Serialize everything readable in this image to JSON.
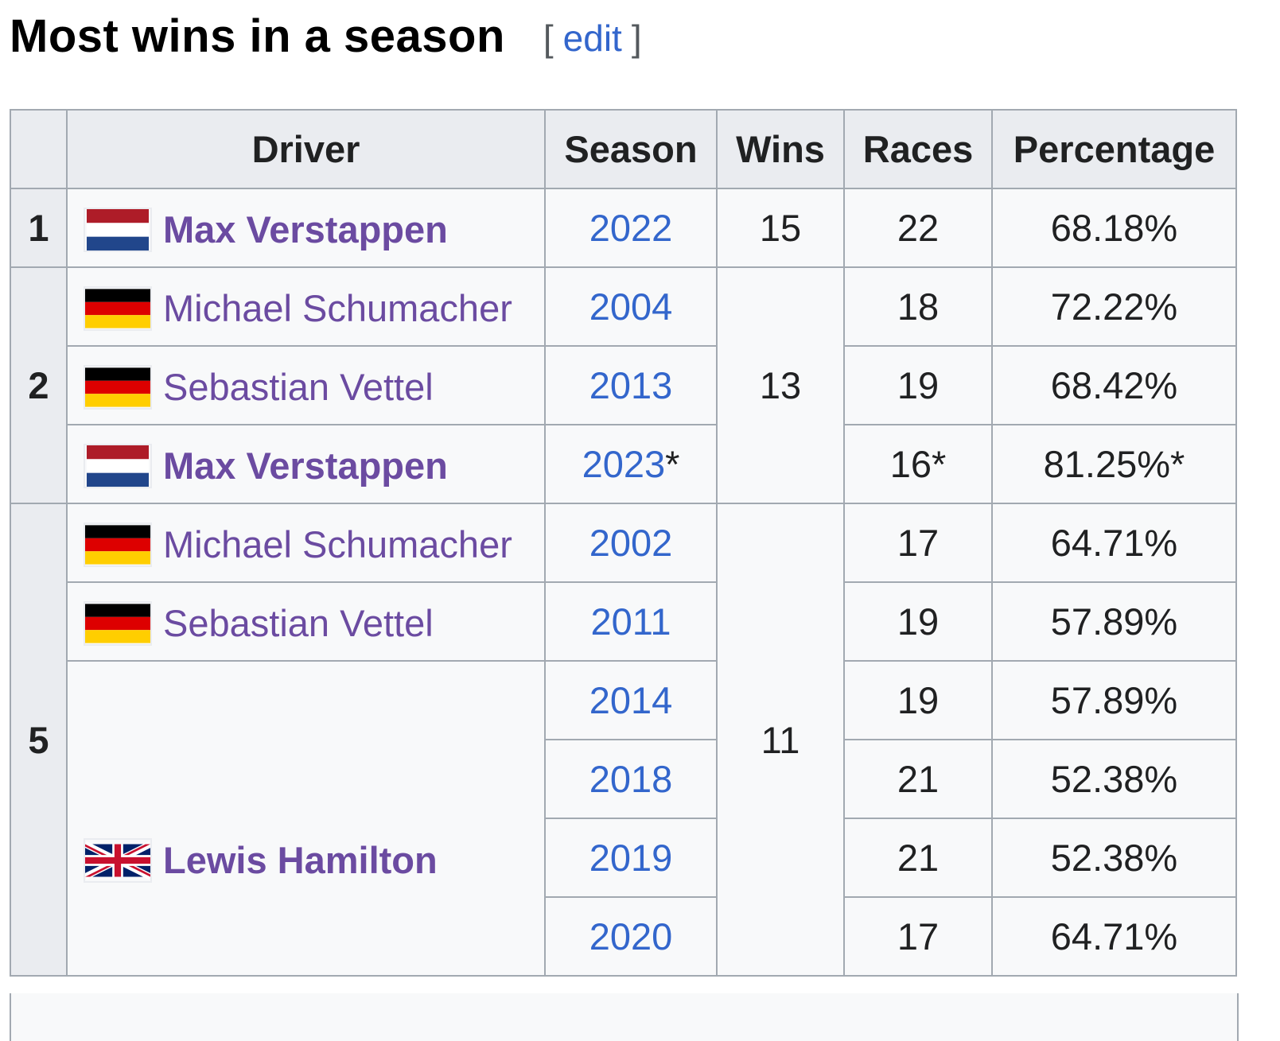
{
  "heading": {
    "title": "Most wins in a season",
    "edit_open": "[",
    "edit_label": "edit",
    "edit_close": "]"
  },
  "table": {
    "columns": [
      "Driver",
      "Season",
      "Wins",
      "Races",
      "Percentage"
    ],
    "groups": [
      {
        "rank": "1",
        "wins": "15",
        "entries": [
          {
            "driver": "Max Verstappen",
            "flag": "netherlands-flag-icon",
            "bold": true,
            "seasons": [
              {
                "season": "2022",
                "note": "",
                "races": "22",
                "percentage": "68.18%"
              }
            ]
          }
        ]
      },
      {
        "rank": "2",
        "wins": "13",
        "entries": [
          {
            "driver": "Michael Schumacher",
            "flag": "germany-flag-icon",
            "bold": false,
            "seasons": [
              {
                "season": "2004",
                "note": "",
                "races": "18",
                "percentage": "72.22%"
              }
            ]
          },
          {
            "driver": "Sebastian Vettel",
            "flag": "germany-flag-icon",
            "bold": false,
            "seasons": [
              {
                "season": "2013",
                "note": "",
                "races": "19",
                "percentage": "68.42%"
              }
            ]
          },
          {
            "driver": "Max Verstappen",
            "flag": "netherlands-flag-icon",
            "bold": true,
            "seasons": [
              {
                "season": "2023",
                "note": "*",
                "races": "16*",
                "percentage": "81.25%*"
              }
            ]
          }
        ]
      },
      {
        "rank": "5",
        "wins": "11",
        "entries": [
          {
            "driver": "Michael Schumacher",
            "flag": "germany-flag-icon",
            "bold": false,
            "seasons": [
              {
                "season": "2002",
                "note": "",
                "races": "17",
                "percentage": "64.71%"
              }
            ]
          },
          {
            "driver": "Sebastian Vettel",
            "flag": "germany-flag-icon",
            "bold": false,
            "seasons": [
              {
                "season": "2011",
                "note": "",
                "races": "19",
                "percentage": "57.89%"
              }
            ]
          },
          {
            "driver": "Lewis Hamilton",
            "flag": "united-kingdom-flag-icon",
            "bold": true,
            "seasons": [
              {
                "season": "2014",
                "note": "",
                "races": "19",
                "percentage": "57.89%"
              },
              {
                "season": "2018",
                "note": "",
                "races": "21",
                "percentage": "52.38%"
              },
              {
                "season": "2019",
                "note": "",
                "races": "21",
                "percentage": "52.38%"
              },
              {
                "season": "2020",
                "note": "",
                "races": "17",
                "percentage": "64.71%"
              }
            ]
          }
        ]
      }
    ]
  },
  "colors": {
    "visited_link": "#6b4ba1",
    "link": "#3366cc",
    "header_bg": "#eaecf0",
    "cell_bg": "#f8f9fa",
    "border": "#a2a9b1"
  }
}
